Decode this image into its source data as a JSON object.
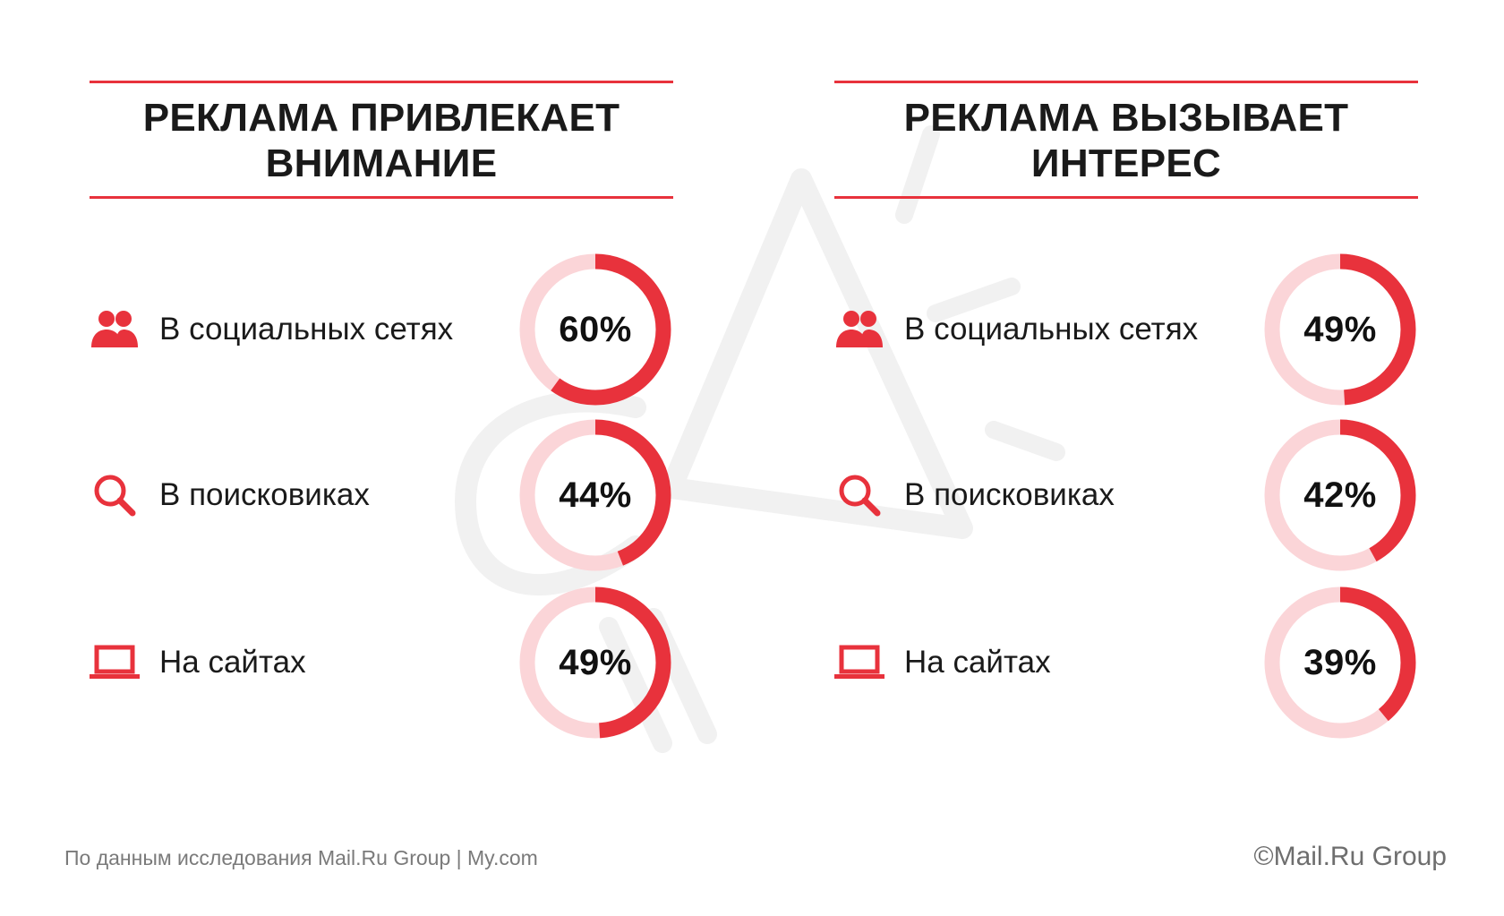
{
  "colors": {
    "accent": "#e8323c",
    "track": "#fbd5d8"
  },
  "panels": [
    {
      "title": "РЕКЛАМА ПРИВЛЕКАЕТ\nВНИМАНИЕ",
      "rows": [
        {
          "icon": "people-icon",
          "label": "В социальных сетях",
          "value": 60,
          "value_text": "60%"
        },
        {
          "icon": "search-icon",
          "label": "В поисковиках",
          "value": 44,
          "value_text": "44%"
        },
        {
          "icon": "laptop-icon",
          "label": "На сайтах",
          "value": 49,
          "value_text": "49%"
        }
      ]
    },
    {
      "title": "РЕКЛАМА ВЫЗЫВАЕТ\nИНТЕРЕС",
      "rows": [
        {
          "icon": "people-icon",
          "label": "В социальных сетях",
          "value": 49,
          "value_text": "49%"
        },
        {
          "icon": "search-icon",
          "label": "В поисковиках",
          "value": 42,
          "value_text": "42%"
        },
        {
          "icon": "laptop-icon",
          "label": "На сайтах",
          "value": 39,
          "value_text": "39%"
        }
      ]
    }
  ],
  "chart_data": [
    {
      "type": "pie",
      "title": "РЕКЛАМА ПРИВЛЕКАЕТ ВНИМАНИЕ",
      "categories": [
        "В социальных сетях",
        "В поисковиках",
        "На сайтах"
      ],
      "values": [
        60,
        44,
        49
      ]
    },
    {
      "type": "pie",
      "title": "РЕКЛАМА ВЫЗЫВАЕТ ИНТЕРЕС",
      "categories": [
        "В социальных сетях",
        "В поисковиках",
        "На сайтах"
      ],
      "values": [
        49,
        42,
        39
      ]
    }
  ],
  "footer": {
    "source": "По данным исследования Mail.Ru Group | My.com",
    "copyright": "©Mail.Ru Group"
  }
}
